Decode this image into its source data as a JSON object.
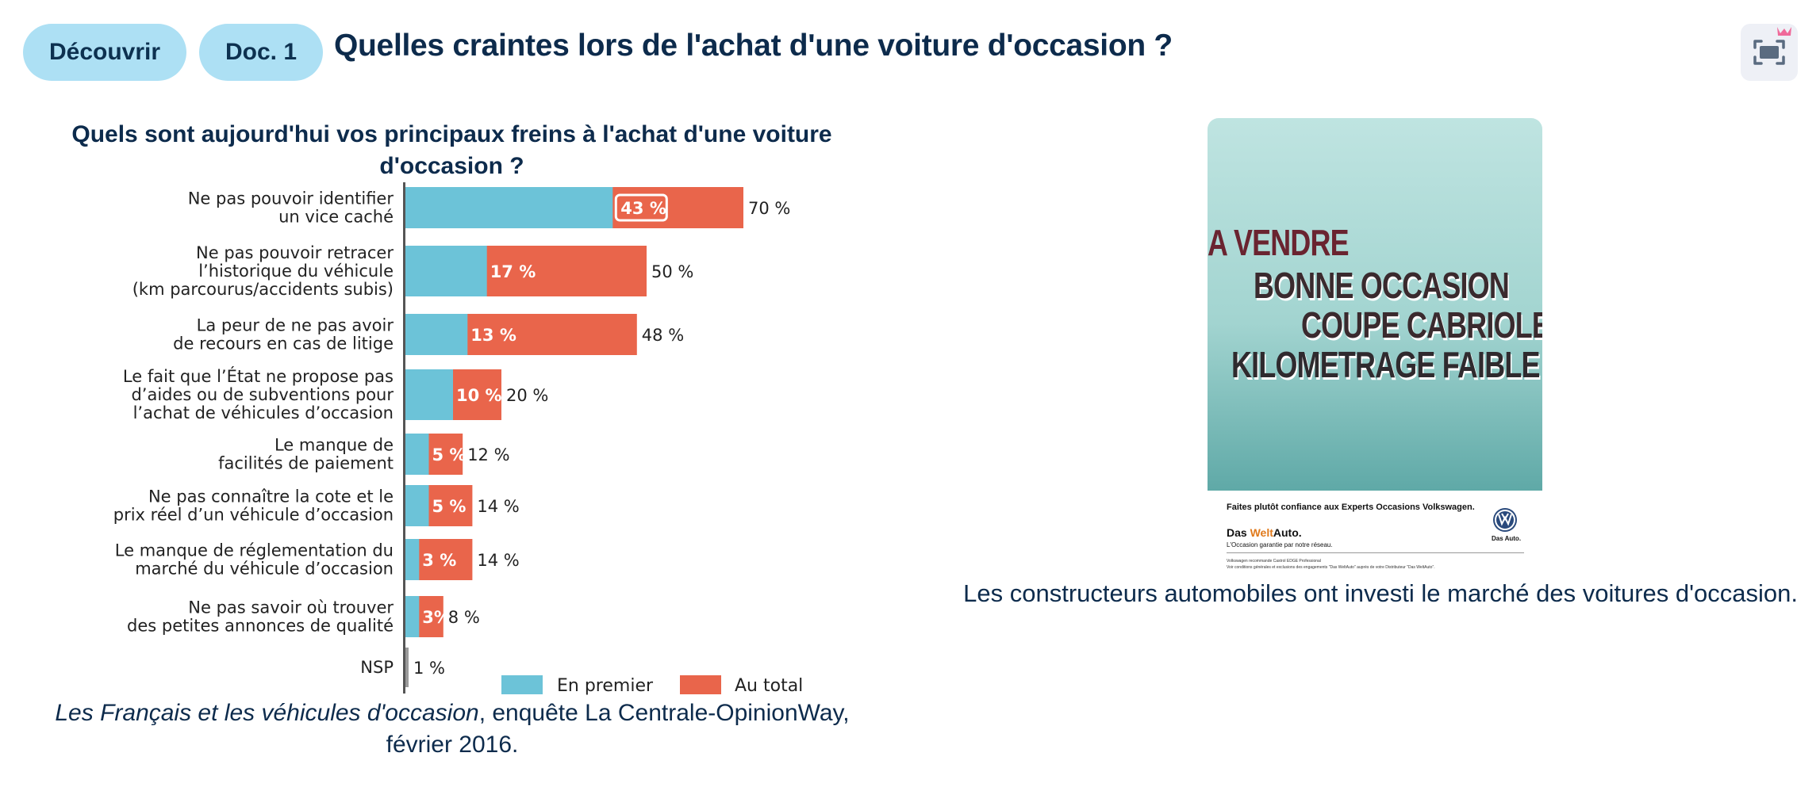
{
  "header": {
    "pill_discover": "Découvrir",
    "pill_doc": "Doc. 1",
    "title": "Quelles craintes lors de l'achat d'une voiture d'occasion ?",
    "fullscreen_icon": "fullscreen-icon",
    "crown_icon": "crown-icon"
  },
  "chart_data": {
    "type": "bar",
    "orientation": "horizontal",
    "title": "Quels sont aujourd'hui vos principaux freins à l'achat d'une voiture d'occasion ?",
    "categories": [
      [
        "Ne pas pouvoir identifier",
        "un vice caché"
      ],
      [
        "Ne pas pouvoir retracer",
        "l’historique du véhicule",
        "(km parcourus/accidents subis)"
      ],
      [
        "La peur de ne pas avoir",
        "de recours en cas de litige"
      ],
      [
        "Le fait que l’État ne propose pas",
        "d’aides ou de subventions pour",
        "l’achat de véhicules d’occasion"
      ],
      [
        "Le manque de",
        "facilités de paiement"
      ],
      [
        "Ne pas connaître la cote et le",
        "prix réel d’un véhicule d’occasion"
      ],
      [
        "Le manque de réglementation du",
        "marché du véhicule d’occasion"
      ],
      [
        "Ne pas savoir où trouver",
        "des petites annonces de qualité"
      ],
      [
        "NSP"
      ]
    ],
    "series": [
      {
        "name": "En premier",
        "color": "#6cc3d8",
        "values": [
          43,
          17,
          13,
          10,
          5,
          5,
          3,
          3,
          null
        ],
        "labels": [
          "43 %",
          "17 %",
          "13 %",
          "10 %",
          "5 %",
          "5 %",
          "3 %",
          "3%",
          ""
        ]
      },
      {
        "name": "Au total",
        "color": "#e9654b",
        "values": [
          70,
          50,
          48,
          20,
          12,
          14,
          14,
          8,
          1
        ],
        "labels": [
          "70 %",
          "50 %",
          "48 %",
          "20 %",
          "12 %",
          "14 %",
          "14 %",
          "8 %",
          "1 %"
        ]
      }
    ],
    "nsp_color": "#9a9a9a",
    "xlim": [
      0,
      100
    ],
    "legend_position": "bottom-right"
  },
  "source": {
    "title_italic": "Les Français et les véhicules d'occasion",
    "rest": ", enquête La Centrale-OpinionWay, février 2016."
  },
  "ad": {
    "line1": "A VENDRE",
    "line2": "BONNE OCCASION",
    "line3": "COUPE CABRIOLET",
    "line4": "KILOMETRAGE FAIBLE",
    "tagline": "Faites plutôt confiance aux Experts Occasions Volkswagen.",
    "brand_a": "Das ",
    "brand_b": "Welt",
    "brand_c": "Auto.",
    "brand_sub": "L'Occasion garantie par notre réseau.",
    "fine1": "Volkswagen recommande Castrol EDGE Professional",
    "fine2": "Voir conditions générales et exclusions des engagements \"Das WeltAuto\" auprès de votre Distributeur \"Das WeltAuto\".",
    "vw_caption": "Das Auto."
  },
  "ad_caption": "Les constructeurs automobiles ont investi le marché des voitures d'occasion."
}
